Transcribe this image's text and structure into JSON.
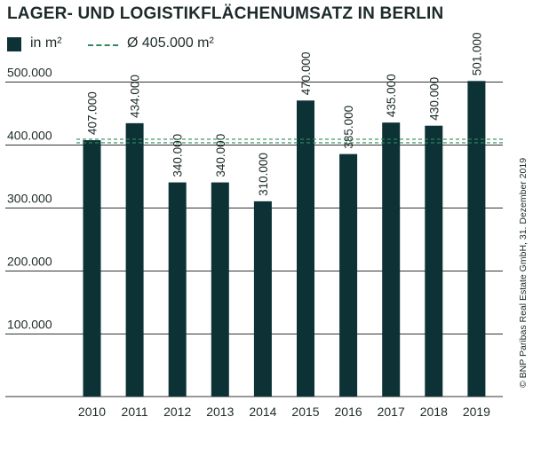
{
  "chart_data": {
    "type": "bar",
    "title": "LAGER- UND LOGISTIKFLÄCHENUMSATZ IN BERLIN",
    "categories": [
      "2010",
      "2011",
      "2012",
      "2013",
      "2014",
      "2015",
      "2016",
      "2017",
      "2018",
      "2019"
    ],
    "values": [
      407000,
      434000,
      340000,
      340000,
      310000,
      470000,
      385000,
      435000,
      430000,
      501000
    ],
    "data_labels": [
      "407.000",
      "434.000",
      "340.000",
      "340.000",
      "310.000",
      "470.000",
      "385.000",
      "435.000",
      "430.000",
      "501.000"
    ],
    "series_name": "in m²",
    "average": 405000,
    "average_label": "Ø 405.000 m²",
    "ylim": [
      0,
      500000
    ],
    "yticks": [
      100000,
      200000,
      300000,
      400000,
      500000
    ],
    "ytick_labels": [
      "100.000",
      "200.000",
      "300.000",
      "400.000",
      "500.000"
    ],
    "xlabel": "",
    "ylabel": "",
    "grid": true,
    "legend_position": "top-left",
    "source": "© BNP Paribas Real Estate GmbH, 31. Dezember 2019",
    "colors": {
      "bar": "#0d3236",
      "average_line": "#2e8a5c",
      "grid": "#333333",
      "text": "#1e2a2a"
    }
  }
}
